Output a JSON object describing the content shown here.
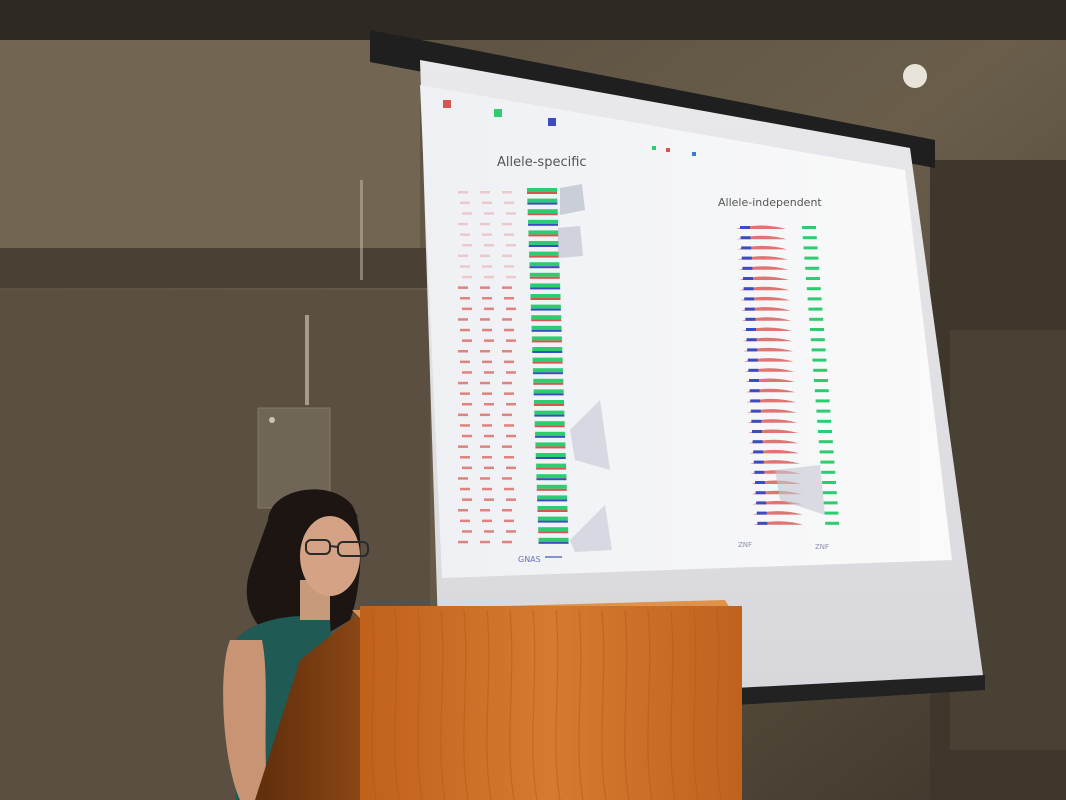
{
  "scene": {
    "colors": {
      "wall_light": "#6e6250",
      "wall_dark": "#3a3228",
      "screen": "#f4f4f6",
      "screen_casing": "#2b2b2b",
      "podium": "#c96a22",
      "podium_dark": "#7a3d12",
      "track_red": "#d9534f",
      "track_green": "#2ecc71",
      "track_blue": "#3b4cc0"
    }
  },
  "slide": {
    "left_title": "Allele-specific",
    "right_title": "Allele-independent",
    "left_gene_label": "GNAS",
    "right_gene_label_1": "ZNF",
    "right_gene_label_2": "ZNF",
    "legend_colors": [
      "#d9534f",
      "#2ecc71",
      "#3b4cc0"
    ]
  }
}
